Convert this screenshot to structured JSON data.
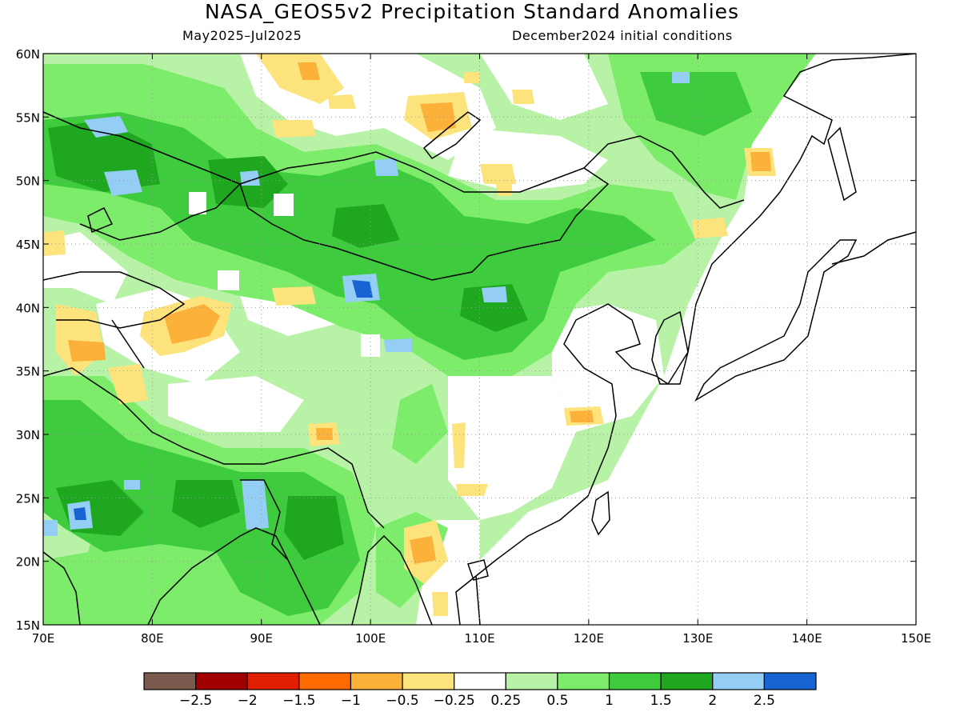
{
  "title": "NASA_GEOS5v2 Precipitation Standard Anomalies",
  "period": "May2025–Jul2025",
  "initial_conditions": "December2024 initial conditions",
  "map": {
    "lon_range": [
      70,
      150
    ],
    "lat_range": [
      15,
      60
    ],
    "x_ticks": [
      "70E",
      "80E",
      "90E",
      "100E",
      "110E",
      "120E",
      "130E",
      "140E",
      "150E"
    ],
    "y_ticks": [
      "15N",
      "20N",
      "25N",
      "30N",
      "35N",
      "40N",
      "45N",
      "50N",
      "55N",
      "60N"
    ],
    "gridlines": "dotted"
  },
  "colorbar": {
    "colors": [
      "#7b5a4e",
      "#a00000",
      "#e01e00",
      "#ff6a00",
      "#fcb13a",
      "#fde37b",
      "#ffffff",
      "#b7f2a7",
      "#7cec6a",
      "#3ecc3e",
      "#1fa81f",
      "#94cef5",
      "#1763d2"
    ],
    "labels": [
      "−2.5",
      "−2",
      "−1.5",
      "−1",
      "−0.5",
      "−0.25",
      "0.25",
      "0.5",
      "1",
      "1.5",
      "2",
      "2.5"
    ]
  }
}
